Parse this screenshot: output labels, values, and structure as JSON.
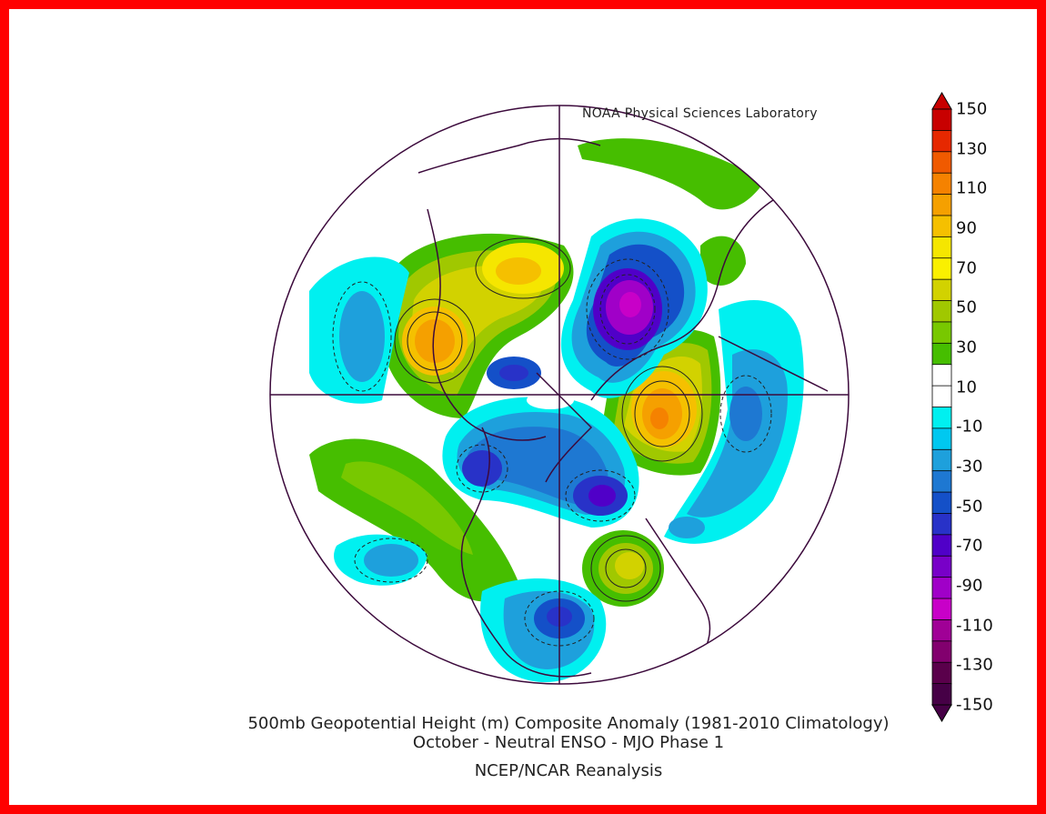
{
  "credit": "NOAA Physical Sciences Laboratory",
  "title_line1": "500mb Geopotential Height (m) Composite Anomaly (1981-2010 Climatology)",
  "title_line2": "October - Neutral ENSO - MJO Phase 1",
  "source": "NCEP/NCAR Reanalysis",
  "colorbar": {
    "labels": [
      "150",
      "130",
      "110",
      "90",
      "70",
      "50",
      "30",
      "10",
      "-10",
      "-30",
      "-50",
      "-70",
      "-90",
      "-110",
      "-130",
      "-150"
    ],
    "colors": [
      "#c80000",
      "#e62800",
      "#f05a00",
      "#f58200",
      "#f5a000",
      "#f5c000",
      "#f5e600",
      "#faf000",
      "#d2d200",
      "#a0c800",
      "#78c800",
      "#46be00",
      "#ffffff",
      "#ffffff",
      "#00f0f0",
      "#00c8f0",
      "#1ea0dc",
      "#1e78d2",
      "#1450c8",
      "#2832c8",
      "#5000c8",
      "#7800c8",
      "#a000c8",
      "#c800c8",
      "#a00096",
      "#82006e",
      "#5a004b",
      "#460046"
    ]
  },
  "map": {
    "projection": "north-polar-stereographic",
    "border_color": "#3c0a3c",
    "frame_color": "#ff0000"
  }
}
